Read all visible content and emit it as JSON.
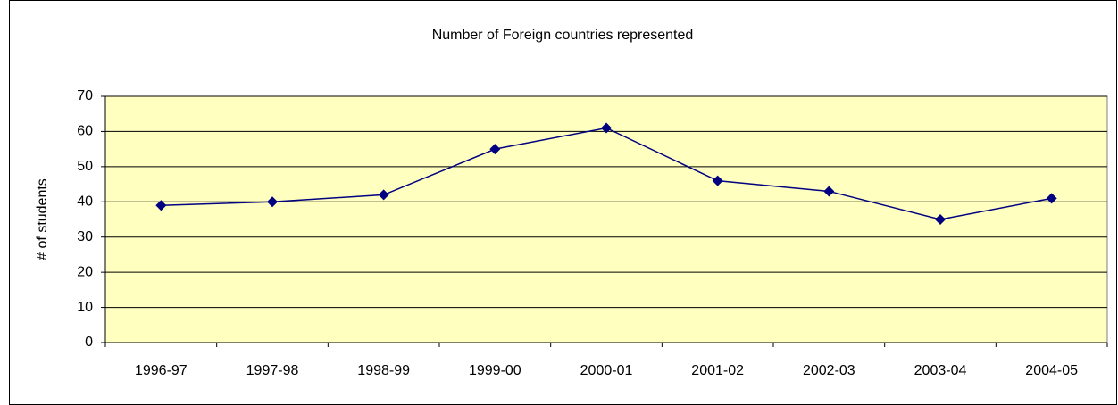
{
  "chart_data": {
    "type": "line",
    "title": "Number of Foreign countries represented",
    "y_label": "# of students",
    "categories": [
      "1996-97",
      "1997-98",
      "1998-99",
      "1999-00",
      "2000-01",
      "2001-02",
      "2002-03",
      "2003-04",
      "2004-05"
    ],
    "series": [
      {
        "name": "Number of Foreign countries represented",
        "color": "#000080",
        "values": [
          39,
          40,
          42,
          55,
          61,
          46,
          43,
          35,
          41
        ]
      }
    ],
    "ylim": [
      0,
      70
    ],
    "yticks": [
      0,
      10,
      20,
      30,
      40,
      50,
      60,
      70
    ],
    "grid": true,
    "plot_background": "#ffffc0"
  }
}
